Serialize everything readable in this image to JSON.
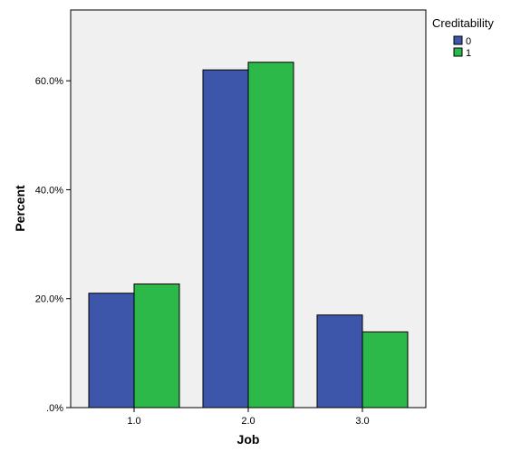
{
  "chart_data": {
    "type": "bar",
    "xlabel": "Job",
    "ylabel": "Percent",
    "categories": [
      "1.0",
      "2.0",
      "3.0"
    ],
    "ylim": [
      0,
      73
    ],
    "yticks": [
      {
        "value": 0,
        "label": ".0%"
      },
      {
        "value": 20,
        "label": "20.0%"
      },
      {
        "value": 40,
        "label": "40.0%"
      },
      {
        "value": 60,
        "label": "60.0%"
      }
    ],
    "legend": {
      "title": "Creditability",
      "placement": "top-right"
    },
    "grid": false,
    "series": [
      {
        "name": "0",
        "color": "#3d56aa",
        "values": [
          21.0,
          62.0,
          17.0
        ]
      },
      {
        "name": "1",
        "color": "#2db84a",
        "values": [
          22.7,
          63.4,
          13.9
        ]
      }
    ],
    "plot_background": "#f0f0f0"
  }
}
